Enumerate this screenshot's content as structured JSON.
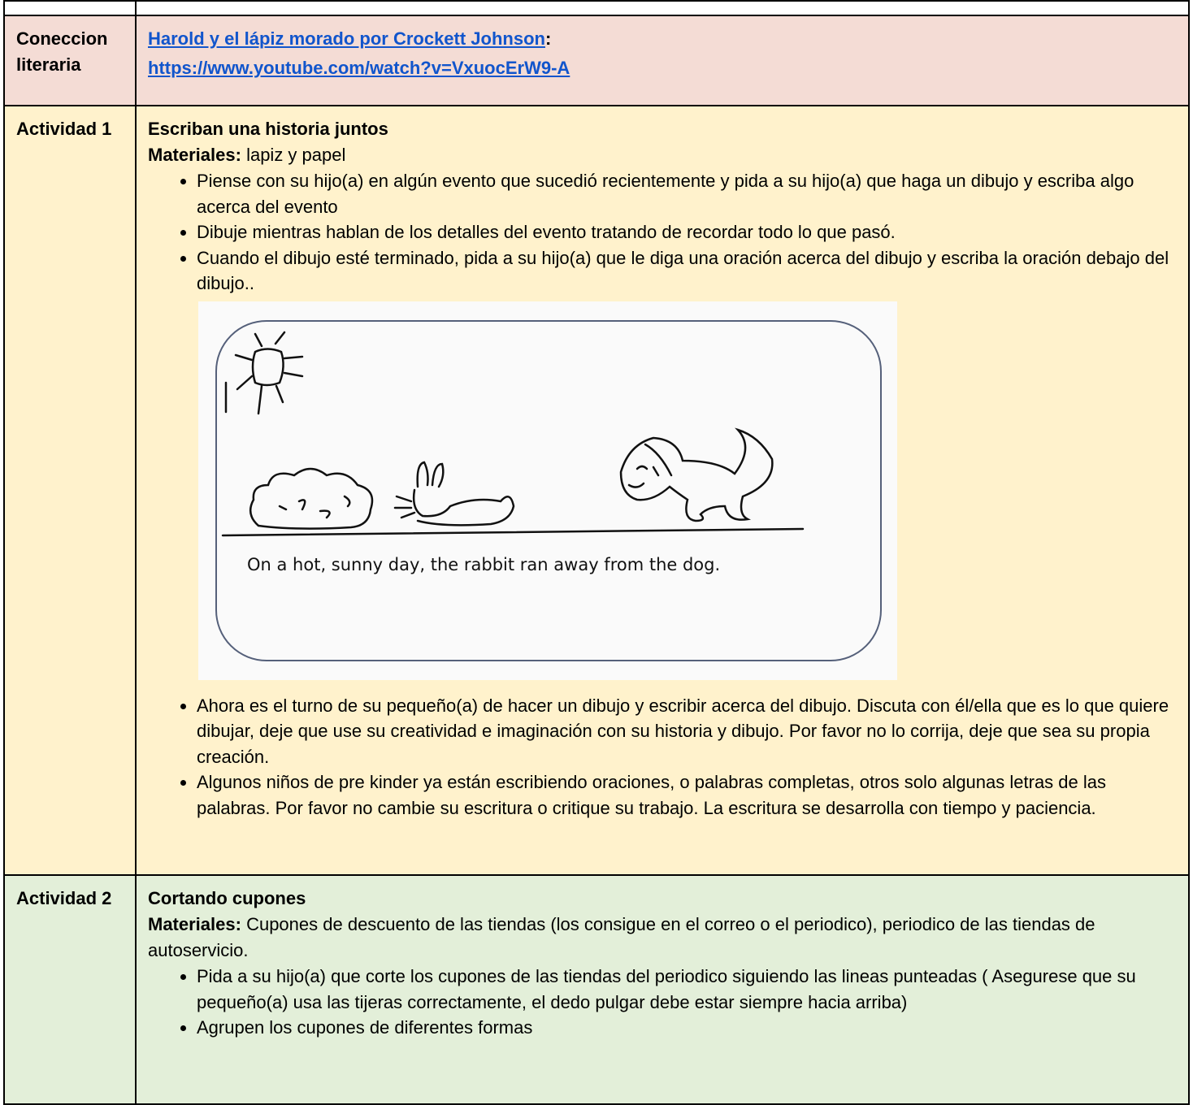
{
  "table": {
    "rows": [
      {
        "label": "Coneccion literaria",
        "link_text": "Harold y el lápiz morado por Crockett Johnson",
        "link_suffix": ":",
        "url": "https://www.youtube.com/watch?v=VxuocErW9-A"
      },
      {
        "label": "Actividad 1",
        "title": "Escriban una historia juntos",
        "materials_label": "Materiales:",
        "materials": "lapiz y papel",
        "bullets_before": [
          "Piense con su hijo(a) en algún evento que sucedió recientemente y pida a su hijo(a) que haga un dibujo y escriba algo acerca del evento",
          "Dibuje mientras hablan de los detalles del evento tratando de recordar todo lo que pasó.",
          "Cuando el dibujo esté terminado, pida a su hijo(a) que le diga una oración acerca del dibujo y escriba la oración debajo del dibujo.."
        ],
        "image_caption": "On a hot, sunny day, the rabbit ran away from the dog.",
        "bullets_after": [
          "Ahora es el turno de su pequeño(a) de hacer un dibujo y escribir acerca del dibujo. Discuta con él/ella que es lo que quiere dibujar, deje que use su creatividad e imaginación con su historia y dibujo. Por favor no lo corrija, deje que sea su propia creación.",
          "Algunos niños de pre kinder ya están escribiendo oraciones, o palabras completas, otros solo algunas letras de las palabras. Por favor no cambie su escritura o critique su trabajo. La escritura se desarrolla con tiempo y paciencia."
        ]
      },
      {
        "label": "Actividad 2",
        "title": "Cortando cupones",
        "materials_label": "Materiales:",
        "materials": "Cupones de descuento de las tiendas (los consigue en el correo o el periodico), periodico de las tiendas de autoservicio.",
        "bullets": [
          "Pida a su hijo(a) que corte los cupones de las tiendas del periodico siguiendo las lineas punteadas ( Asegurese que su pequeño(a) usa las tijeras correctamente, el dedo pulgar debe estar siempre hacia arriba)",
          "Agrupen los cupones de diferentes formas"
        ]
      }
    ]
  }
}
